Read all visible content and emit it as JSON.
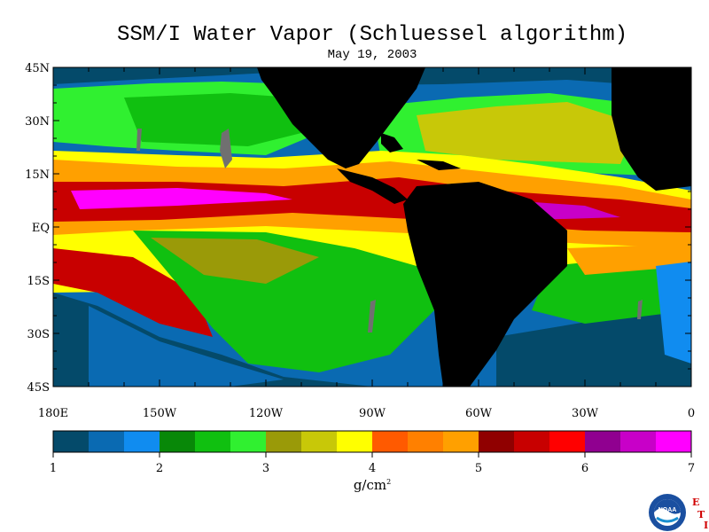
{
  "title": "SSM/I Water Vapor (Schluessel algorithm)",
  "date": "May 19, 2003",
  "latitude_labels": [
    "45N",
    "30N",
    "15N",
    "EQ",
    "15S",
    "30S",
    "45S"
  ],
  "longitude_labels": [
    "180E",
    "150W",
    "120W",
    "90W",
    "60W",
    "30W",
    "0"
  ],
  "colorbar": {
    "ticks": [
      "1",
      "2",
      "3",
      "4",
      "5",
      "6",
      "7"
    ],
    "colors": [
      "#044a6a",
      "#0a6ab2",
      "#108cf0",
      "#088808",
      "#10c010",
      "#30f030",
      "#9a9a08",
      "#c8c808",
      "#ffff00",
      "#ff5a00",
      "#ff8000",
      "#ffa000",
      "#900000",
      "#c80000",
      "#ff0000",
      "#900090",
      "#c800c8",
      "#ff00ff"
    ],
    "unit": "g/cm",
    "unit_exponent": "2"
  },
  "land_color": "#000000",
  "logo": {
    "name": "NOAA",
    "eti_letters": [
      "E",
      "T",
      "I"
    ]
  }
}
